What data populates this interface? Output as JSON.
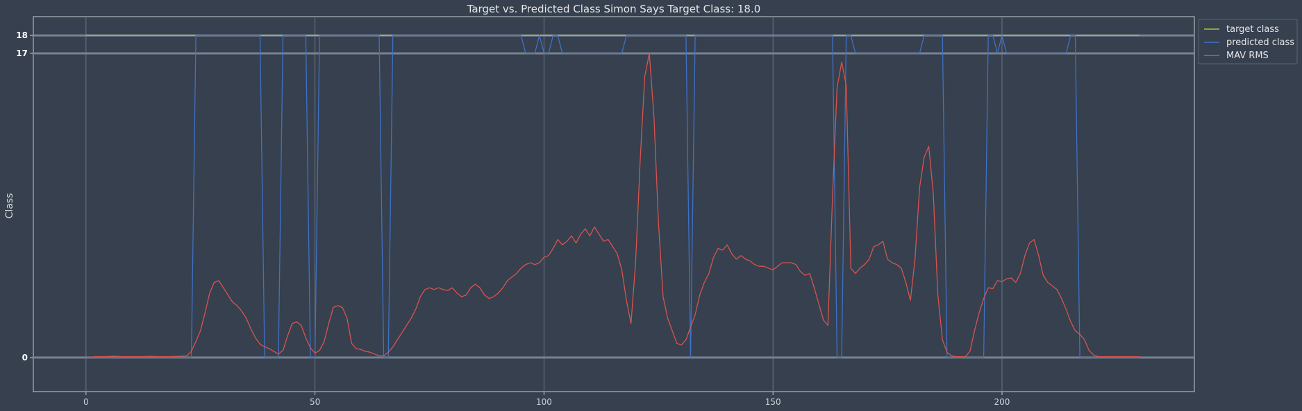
{
  "chart_data": {
    "type": "line",
    "title": "Target vs. Predicted Class Simon Says Target Class: 18.0",
    "xlabel": "",
    "ylabel": "Class",
    "xlim": [
      -11.5,
      242
    ],
    "ylim": [
      -1.9,
      19.05
    ],
    "x_ticks": [
      0,
      50,
      100,
      150,
      200
    ],
    "y_ticks": [
      0,
      17,
      18
    ],
    "y_tick_labels": [
      "0",
      "17",
      "18"
    ],
    "horizontal_reference_lines": [
      0,
      17,
      18
    ],
    "grid": true,
    "legend_position": "top-right",
    "series": [
      {
        "name": "target class",
        "color": "#9acd32",
        "points": [
          [
            0,
            18
          ],
          [
            230,
            18
          ]
        ]
      },
      {
        "name": "predicted class",
        "color": "#3f72c6",
        "points": [
          [
            0,
            0
          ],
          [
            23,
            0
          ],
          [
            24,
            18
          ],
          [
            38,
            18
          ],
          [
            39,
            0
          ],
          [
            42,
            0
          ],
          [
            43,
            18
          ],
          [
            48,
            18
          ],
          [
            49,
            0
          ],
          [
            50,
            0
          ],
          [
            51,
            18
          ],
          [
            64,
            18
          ],
          [
            65,
            0
          ],
          [
            66,
            0
          ],
          [
            67,
            18
          ],
          [
            95,
            18
          ],
          [
            96,
            17
          ],
          [
            98,
            17
          ],
          [
            99,
            18
          ],
          [
            100,
            17
          ],
          [
            101,
            17
          ],
          [
            102,
            18
          ],
          [
            103,
            18
          ],
          [
            104,
            17
          ],
          [
            117,
            17
          ],
          [
            118,
            18
          ],
          [
            131,
            18
          ],
          [
            132,
            0
          ],
          [
            133,
            18
          ],
          [
            163,
            18
          ],
          [
            164,
            0
          ],
          [
            165,
            0
          ],
          [
            166,
            18
          ],
          [
            167,
            18
          ],
          [
            168,
            17
          ],
          [
            182,
            17
          ],
          [
            183,
            18
          ],
          [
            187,
            18
          ],
          [
            188,
            0
          ],
          [
            196,
            0
          ],
          [
            197,
            18
          ],
          [
            198,
            18
          ],
          [
            199,
            17
          ],
          [
            200,
            18
          ],
          [
            201,
            17
          ],
          [
            214,
            17
          ],
          [
            215,
            18
          ],
          [
            216,
            18
          ],
          [
            217,
            0
          ],
          [
            230,
            0
          ]
        ]
      },
      {
        "name": "MAV RMS",
        "color": "#d9544d",
        "points": [
          [
            0,
            0
          ],
          [
            2,
            0.05
          ],
          [
            4,
            0.05
          ],
          [
            6,
            0.08
          ],
          [
            8,
            0.05
          ],
          [
            10,
            0.05
          ],
          [
            12,
            0.05
          ],
          [
            14,
            0.07
          ],
          [
            16,
            0.05
          ],
          [
            18,
            0.05
          ],
          [
            20,
            0.07
          ],
          [
            22,
            0.1
          ],
          [
            23,
            0.35
          ],
          [
            24,
            0.9
          ],
          [
            25,
            1.5
          ],
          [
            26,
            2.5
          ],
          [
            27,
            3.6
          ],
          [
            28,
            4.2
          ],
          [
            29,
            4.3
          ],
          [
            30,
            3.9
          ],
          [
            31,
            3.5
          ],
          [
            32,
            3.1
          ],
          [
            33,
            2.9
          ],
          [
            34,
            2.6
          ],
          [
            35,
            2.2
          ],
          [
            36,
            1.6
          ],
          [
            37,
            1.1
          ],
          [
            38,
            0.75
          ],
          [
            39,
            0.6
          ],
          [
            40,
            0.5
          ],
          [
            41,
            0.35
          ],
          [
            42,
            0.2
          ],
          [
            43,
            0.4
          ],
          [
            44,
            1.2
          ],
          [
            45,
            1.9
          ],
          [
            46,
            2.0
          ],
          [
            47,
            1.8
          ],
          [
            48,
            1.1
          ],
          [
            49,
            0.55
          ],
          [
            50,
            0.25
          ],
          [
            51,
            0.4
          ],
          [
            52,
            0.9
          ],
          [
            53,
            1.9
          ],
          [
            54,
            2.8
          ],
          [
            55,
            2.9
          ],
          [
            56,
            2.8
          ],
          [
            57,
            2.2
          ],
          [
            58,
            0.8
          ],
          [
            59,
            0.5
          ],
          [
            60,
            0.45
          ],
          [
            61,
            0.35
          ],
          [
            62,
            0.3
          ],
          [
            63,
            0.2
          ],
          [
            64,
            0.1
          ],
          [
            65,
            0.1
          ],
          [
            66,
            0.3
          ],
          [
            67,
            0.6
          ],
          [
            68,
            1.0
          ],
          [
            69,
            1.4
          ],
          [
            70,
            1.8
          ],
          [
            71,
            2.2
          ],
          [
            72,
            2.7
          ],
          [
            73,
            3.4
          ],
          [
            74,
            3.8
          ],
          [
            75,
            3.9
          ],
          [
            76,
            3.8
          ],
          [
            77,
            3.9
          ],
          [
            78,
            3.8
          ],
          [
            79,
            3.75
          ],
          [
            80,
            3.9
          ],
          [
            81,
            3.6
          ],
          [
            82,
            3.4
          ],
          [
            83,
            3.5
          ],
          [
            84,
            3.9
          ],
          [
            85,
            4.1
          ],
          [
            86,
            3.9
          ],
          [
            87,
            3.5
          ],
          [
            88,
            3.3
          ],
          [
            89,
            3.4
          ],
          [
            90,
            3.6
          ],
          [
            91,
            3.9
          ],
          [
            92,
            4.3
          ],
          [
            93,
            4.5
          ],
          [
            94,
            4.7
          ],
          [
            95,
            5.0
          ],
          [
            96,
            5.2
          ],
          [
            97,
            5.3
          ],
          [
            98,
            5.2
          ],
          [
            99,
            5.3
          ],
          [
            100,
            5.6
          ],
          [
            101,
            5.7
          ],
          [
            102,
            6.1
          ],
          [
            103,
            6.6
          ],
          [
            104,
            6.3
          ],
          [
            105,
            6.5
          ],
          [
            106,
            6.8
          ],
          [
            107,
            6.4
          ],
          [
            108,
            6.9
          ],
          [
            109,
            7.2
          ],
          [
            110,
            6.8
          ],
          [
            111,
            7.3
          ],
          [
            112,
            6.9
          ],
          [
            113,
            6.5
          ],
          [
            114,
            6.6
          ],
          [
            115,
            6.2
          ],
          [
            116,
            5.8
          ],
          [
            117,
            4.9
          ],
          [
            118,
            3.2
          ],
          [
            119,
            1.9
          ],
          [
            120,
            5.3
          ],
          [
            121,
            11.0
          ],
          [
            122,
            15.7
          ],
          [
            123,
            17.0
          ],
          [
            124,
            13.5
          ],
          [
            125,
            7.5
          ],
          [
            126,
            3.4
          ],
          [
            127,
            2.2
          ],
          [
            128,
            1.5
          ],
          [
            129,
            0.8
          ],
          [
            130,
            0.7
          ],
          [
            131,
            1.0
          ],
          [
            132,
            1.7
          ],
          [
            133,
            2.4
          ],
          [
            134,
            3.5
          ],
          [
            135,
            4.2
          ],
          [
            136,
            4.7
          ],
          [
            137,
            5.6
          ],
          [
            138,
            6.1
          ],
          [
            139,
            6.0
          ],
          [
            140,
            6.3
          ],
          [
            141,
            5.8
          ],
          [
            142,
            5.5
          ],
          [
            143,
            5.7
          ],
          [
            144,
            5.5
          ],
          [
            145,
            5.4
          ],
          [
            146,
            5.2
          ],
          [
            147,
            5.1
          ],
          [
            148,
            5.1
          ],
          [
            149,
            5.0
          ],
          [
            150,
            4.9
          ],
          [
            151,
            5.1
          ],
          [
            152,
            5.3
          ],
          [
            153,
            5.3
          ],
          [
            154,
            5.3
          ],
          [
            155,
            5.2
          ],
          [
            156,
            4.8
          ],
          [
            157,
            4.6
          ],
          [
            158,
            4.7
          ],
          [
            159,
            3.9
          ],
          [
            160,
            3.0
          ],
          [
            161,
            2.1
          ],
          [
            162,
            1.8
          ],
          [
            163,
            9.0
          ],
          [
            164,
            15.1
          ],
          [
            165,
            16.5
          ],
          [
            166,
            15.2
          ],
          [
            167,
            5.0
          ],
          [
            168,
            4.7
          ],
          [
            169,
            5.0
          ],
          [
            170,
            5.2
          ],
          [
            171,
            5.5
          ],
          [
            172,
            6.2
          ],
          [
            173,
            6.3
          ],
          [
            174,
            6.5
          ],
          [
            175,
            5.5
          ],
          [
            176,
            5.3
          ],
          [
            177,
            5.2
          ],
          [
            178,
            5.0
          ],
          [
            179,
            4.2
          ],
          [
            180,
            3.2
          ],
          [
            181,
            5.5
          ],
          [
            182,
            9.5
          ],
          [
            183,
            11.2
          ],
          [
            184,
            11.8
          ],
          [
            185,
            9.2
          ],
          [
            186,
            3.5
          ],
          [
            187,
            1.0
          ],
          [
            188,
            0.3
          ],
          [
            189,
            0.1
          ],
          [
            190,
            0.05
          ],
          [
            191,
            0.05
          ],
          [
            192,
            0.05
          ],
          [
            193,
            0.35
          ],
          [
            194,
            1.5
          ],
          [
            195,
            2.5
          ],
          [
            196,
            3.3
          ],
          [
            197,
            3.9
          ],
          [
            198,
            3.85
          ],
          [
            199,
            4.3
          ],
          [
            200,
            4.25
          ],
          [
            201,
            4.4
          ],
          [
            202,
            4.45
          ],
          [
            203,
            4.2
          ],
          [
            204,
            4.7
          ],
          [
            205,
            5.7
          ],
          [
            206,
            6.4
          ],
          [
            207,
            6.6
          ],
          [
            208,
            5.7
          ],
          [
            209,
            4.6
          ],
          [
            210,
            4.2
          ],
          [
            211,
            4.0
          ],
          [
            212,
            3.8
          ],
          [
            213,
            3.3
          ],
          [
            214,
            2.7
          ],
          [
            215,
            2.0
          ],
          [
            216,
            1.5
          ],
          [
            217,
            1.3
          ],
          [
            218,
            1.0
          ],
          [
            219,
            0.4
          ],
          [
            220,
            0.15
          ],
          [
            221,
            0.05
          ],
          [
            225,
            0.05
          ],
          [
            230,
            0.05
          ]
        ]
      }
    ]
  }
}
